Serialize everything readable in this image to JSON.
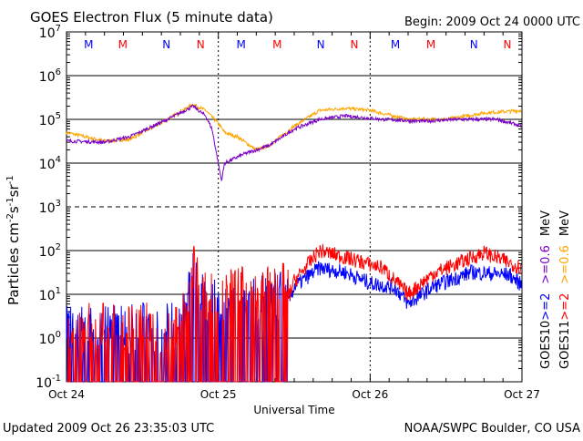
{
  "chart_data": {
    "type": "line",
    "title": "GOES Electron Flux (5 minute data)",
    "begin": "Begin: 2009 Oct 24 0000 UTC",
    "xlabel": "Universal Time",
    "ylabel_parts": [
      "Particles cm",
      "-2",
      "s",
      "-1",
      "sr",
      "-1"
    ],
    "xlim_hours": [
      0,
      72
    ],
    "ylim": [
      0.1,
      10000000
    ],
    "yscale": "log",
    "y_ticks": [
      {
        "base": "10",
        "exp": "7"
      },
      {
        "base": "10",
        "exp": "6"
      },
      {
        "base": "10",
        "exp": "5"
      },
      {
        "base": "10",
        "exp": "4"
      },
      {
        "base": "10",
        "exp": "3"
      },
      {
        "base": "10",
        "exp": "2"
      },
      {
        "base": "10",
        "exp": "1"
      },
      {
        "base": "10",
        "exp": "0"
      },
      {
        "base": "10",
        "exp": "-1"
      }
    ],
    "x_ticks": [
      {
        "hour": 0,
        "label": "Oct 24"
      },
      {
        "hour": 24,
        "label": "Oct 25"
      },
      {
        "hour": 48,
        "label": "Oct 26"
      },
      {
        "hour": 72,
        "label": "Oct 27"
      }
    ],
    "threshold_dashed": 1000,
    "markers": [
      {
        "hour": 3.5,
        "label": "M",
        "color": "#0000ff"
      },
      {
        "hour": 8.9,
        "label": "M",
        "color": "#ff0000"
      },
      {
        "hour": 15.8,
        "label": "N",
        "color": "#0000ff"
      },
      {
        "hour": 21.2,
        "label": "N",
        "color": "#ff0000"
      },
      {
        "hour": 27.6,
        "label": "M",
        "color": "#0000ff"
      },
      {
        "hour": 33.3,
        "label": "M",
        "color": "#ff0000"
      },
      {
        "hour": 40.2,
        "label": "N",
        "color": "#0000ff"
      },
      {
        "hour": 45.5,
        "label": "N",
        "color": "#ff0000"
      },
      {
        "hour": 52.0,
        "label": "M",
        "color": "#0000ff"
      },
      {
        "hour": 57.6,
        "label": "M",
        "color": "#ff0000"
      },
      {
        "hour": 64.4,
        "label": "N",
        "color": "#0000ff"
      },
      {
        "hour": 69.7,
        "label": "N",
        "color": "#ff0000"
      }
    ],
    "legend": [
      {
        "group": "GOES10",
        "label": "MeV",
        "lines": [
          {
            "text": ">=2",
            "color": "#0000ff"
          },
          {
            "text": ">=0.6",
            "color": "#7a00c8"
          }
        ]
      },
      {
        "group": "GOES11",
        "label": "MeV",
        "lines": [
          {
            "text": ">=2",
            "color": "#ff0000"
          },
          {
            "text": ">=0.6",
            "color": "#ffa500"
          }
        ]
      }
    ],
    "series": [
      {
        "name": "GOES11 >=0.6 MeV",
        "color": "#ffa500",
        "noisy_until": 0,
        "points": [
          [
            0,
            50000
          ],
          [
            6,
            32000
          ],
          [
            10,
            35000
          ],
          [
            16,
            100000
          ],
          [
            20,
            220000
          ],
          [
            22,
            160000
          ],
          [
            24,
            80000
          ],
          [
            25,
            50000
          ],
          [
            27,
            40000
          ],
          [
            30,
            20000
          ],
          [
            32,
            25000
          ],
          [
            36,
            70000
          ],
          [
            40,
            160000
          ],
          [
            44,
            180000
          ],
          [
            48,
            160000
          ],
          [
            54,
            100000
          ],
          [
            60,
            100000
          ],
          [
            66,
            140000
          ],
          [
            72,
            160000
          ]
        ]
      },
      {
        "name": "GOES10 >=0.6 MeV",
        "color": "#7a00c8",
        "noisy_until": 0,
        "points": [
          [
            0,
            32000
          ],
          [
            6,
            30000
          ],
          [
            10,
            40000
          ],
          [
            16,
            100000
          ],
          [
            20,
            200000
          ],
          [
            22,
            120000
          ],
          [
            23,
            60000
          ],
          [
            24.5,
            4000
          ],
          [
            25,
            10000
          ],
          [
            28,
            16000
          ],
          [
            32,
            25000
          ],
          [
            36,
            60000
          ],
          [
            40,
            100000
          ],
          [
            44,
            120000
          ],
          [
            50,
            100000
          ],
          [
            56,
            90000
          ],
          [
            62,
            100000
          ],
          [
            68,
            100000
          ],
          [
            72,
            70000
          ]
        ]
      },
      {
        "name": "GOES10 >=2 MeV",
        "color": "#0000ff",
        "noisy_until": 35,
        "points": [
          [
            0,
            1
          ],
          [
            18,
            1
          ],
          [
            20,
            15
          ],
          [
            22,
            3
          ],
          [
            35,
            6
          ],
          [
            36,
            15
          ],
          [
            40,
            40
          ],
          [
            44,
            32
          ],
          [
            48,
            18
          ],
          [
            52,
            14
          ],
          [
            54,
            6
          ],
          [
            58,
            15
          ],
          [
            64,
            32
          ],
          [
            70,
            28
          ],
          [
            72,
            16
          ]
        ]
      },
      {
        "name": "GOES11 >=2 MeV",
        "color": "#ff0000",
        "noisy_until": 35,
        "points": [
          [
            0,
            1
          ],
          [
            18,
            1
          ],
          [
            20,
            30
          ],
          [
            22,
            5
          ],
          [
            35,
            8
          ],
          [
            36,
            20
          ],
          [
            40,
            100
          ],
          [
            44,
            70
          ],
          [
            50,
            40
          ],
          [
            54,
            10
          ],
          [
            58,
            30
          ],
          [
            66,
            90
          ],
          [
            72,
            40
          ]
        ]
      }
    ]
  },
  "footer": {
    "updated": "Updated 2009 Oct 26 23:35:03 UTC",
    "credit": "NOAA/SWPC Boulder, CO USA"
  }
}
